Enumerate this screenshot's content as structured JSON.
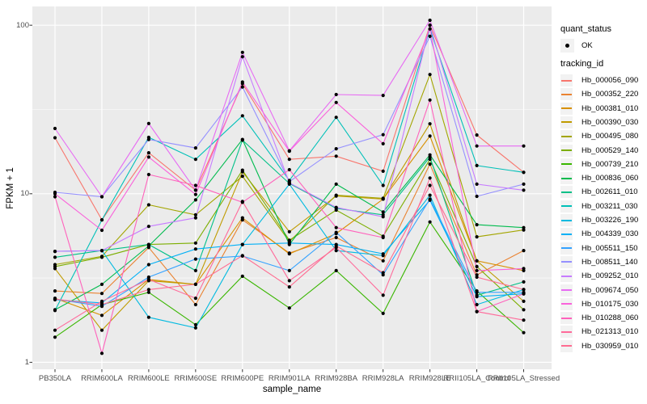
{
  "figure": {
    "background": "#FFFFFF",
    "panel_background": "#EBEBEB",
    "gridline_color": "#FFFFFF",
    "axis_text_color": "#4D4D4D",
    "tick_mark_color": "#333333",
    "point_color": "#000000"
  },
  "chart_data": {
    "type": "line",
    "title": "",
    "xlabel": "sample_name",
    "ylabel": "FPKM + 1",
    "y_scale": "log10",
    "ylim": [
      1,
      130
    ],
    "y_ticks": [
      1,
      10,
      100
    ],
    "y_tick_labels": [
      "1",
      "10",
      "100"
    ],
    "y_minor_ticks": [
      3.162,
      31.623
    ],
    "grid": true,
    "legend_position": "right",
    "categories": [
      "PB350LA",
      "RRIM600LA",
      "RRIM600LE",
      "RRIM600SE",
      "RRIM600PE",
      "RRIM901LA",
      "RRIM928BA",
      "RRIM928LA",
      "RRIM928LE",
      "RRII105LA_Control",
      "RRII105LA_Stressed"
    ],
    "legend": {
      "quant_status_title": "quant_status",
      "quant_status_items": [
        {
          "label": "OK",
          "marker": "point",
          "color": "#000000"
        }
      ],
      "tracking_title": "tracking_id"
    },
    "series": [
      {
        "name": "Hb_000056_090",
        "color": "#F8766D",
        "values": [
          21.5,
          7.0,
          17.5,
          10.5,
          45,
          16,
          16.7,
          13.6,
          100,
          22.3,
          13.4
        ]
      },
      {
        "name": "Hb_000352_220",
        "color": "#EA8331",
        "values": [
          2.65,
          2.56,
          4.8,
          2.2,
          7.0,
          4.45,
          5.5,
          4.0,
          15,
          3.3,
          4.6
        ]
      },
      {
        "name": "Hb_000381_010",
        "color": "#D89000",
        "values": [
          2.4,
          1.9,
          3.1,
          2.9,
          7.2,
          4.4,
          5.8,
          9.3,
          22,
          4.0,
          3.5
        ]
      },
      {
        "name": "Hb_000390_030",
        "color": "#C09B00",
        "values": [
          3.6,
          1.55,
          3.05,
          2.9,
          13.5,
          5.95,
          9.7,
          9.3,
          26,
          4.0,
          2.3
        ]
      },
      {
        "name": "Hb_000495_080",
        "color": "#A3A500",
        "values": [
          3.8,
          4.25,
          8.6,
          7.5,
          12.7,
          5.2,
          9.8,
          9.4,
          51,
          5.55,
          6.1
        ]
      },
      {
        "name": "Hb_000529_140",
        "color": "#7CAE00",
        "values": [
          3.7,
          4.2,
          5.0,
          5.1,
          13.8,
          5.3,
          8.0,
          5.6,
          16,
          3.7,
          2.05
        ]
      },
      {
        "name": "Hb_000739_210",
        "color": "#39B600",
        "values": [
          1.41,
          2.2,
          2.6,
          1.67,
          3.24,
          2.1,
          3.5,
          1.95,
          6.8,
          2.65,
          1.5
        ]
      },
      {
        "name": "Hb_000836_060",
        "color": "#00BB4E",
        "values": [
          2.05,
          2.9,
          4.9,
          9.2,
          21,
          5.0,
          11.4,
          7.8,
          17,
          6.55,
          6.3
        ]
      },
      {
        "name": "Hb_002611_010",
        "color": "#00C087",
        "values": [
          4.2,
          4.6,
          5.0,
          3.5,
          20.8,
          11.5,
          8.2,
          7.5,
          16.5,
          2.5,
          3.0
        ]
      },
      {
        "name": "Hb_003211_030",
        "color": "#00C0B8",
        "values": [
          2.03,
          7.0,
          21.6,
          16,
          29,
          12,
          28.4,
          11.2,
          95,
          14.7,
          13.4
        ]
      },
      {
        "name": "Hb_003226_190",
        "color": "#00BAE0",
        "values": [
          4.55,
          4.6,
          1.85,
          1.6,
          5.0,
          11.4,
          4.6,
          4.3,
          9.8,
          2.2,
          2.7
        ]
      },
      {
        "name": "Hb_004339_030",
        "color": "#00B0F6",
        "values": [
          2.35,
          2.25,
          3.8,
          4.7,
          5.0,
          5.1,
          5.0,
          4.4,
          9.15,
          2.45,
          2.55
        ]
      },
      {
        "name": "Hb_005511_150",
        "color": "#35A2FF",
        "values": [
          2.37,
          2.15,
          3.2,
          4.1,
          4.27,
          3.5,
          5.9,
          3.3,
          9.3,
          2.6,
          2.6
        ]
      },
      {
        "name": "Hb_008511_140",
        "color": "#9590FF",
        "values": [
          10.2,
          9.6,
          21.0,
          18.7,
          43,
          11.8,
          18.5,
          22.4,
          86,
          9.65,
          11.4
        ]
      },
      {
        "name": "Hb_009252_010",
        "color": "#C77CFF",
        "values": [
          4.55,
          4.6,
          6.4,
          7.2,
          65,
          11.6,
          8.3,
          7.3,
          100,
          11.4,
          10.5
        ]
      },
      {
        "name": "Hb_009674_050",
        "color": "#E76BF3",
        "values": [
          24.4,
          9.6,
          26.1,
          10.5,
          69,
          18,
          38.8,
          38.3,
          107,
          19.2,
          19.2
        ]
      },
      {
        "name": "Hb_010175_030",
        "color": "#FA62DB",
        "values": [
          10.0,
          6.07,
          16.5,
          9.9,
          46,
          17.9,
          34.8,
          19.8,
          95,
          3.5,
          3.6
        ]
      },
      {
        "name": "Hb_010288_060",
        "color": "#FF62BC",
        "values": [
          9.6,
          1.13,
          13.0,
          11.2,
          8.9,
          13.9,
          6.3,
          5.5,
          36,
          2.0,
          2.55
        ]
      },
      {
        "name": "Hb_021313_010",
        "color": "#FF6A9A",
        "values": [
          1.55,
          2.3,
          3.1,
          2.4,
          9.0,
          3.05,
          4.8,
          2.5,
          12.4,
          2.0,
          1.78
        ]
      },
      {
        "name": "Hb_030959_010",
        "color": "#FF6C91",
        "values": [
          2.37,
          2.2,
          2.7,
          2.9,
          4.3,
          2.8,
          4.9,
          3.4,
          11.2,
          3.2,
          2.7
        ]
      }
    ]
  }
}
